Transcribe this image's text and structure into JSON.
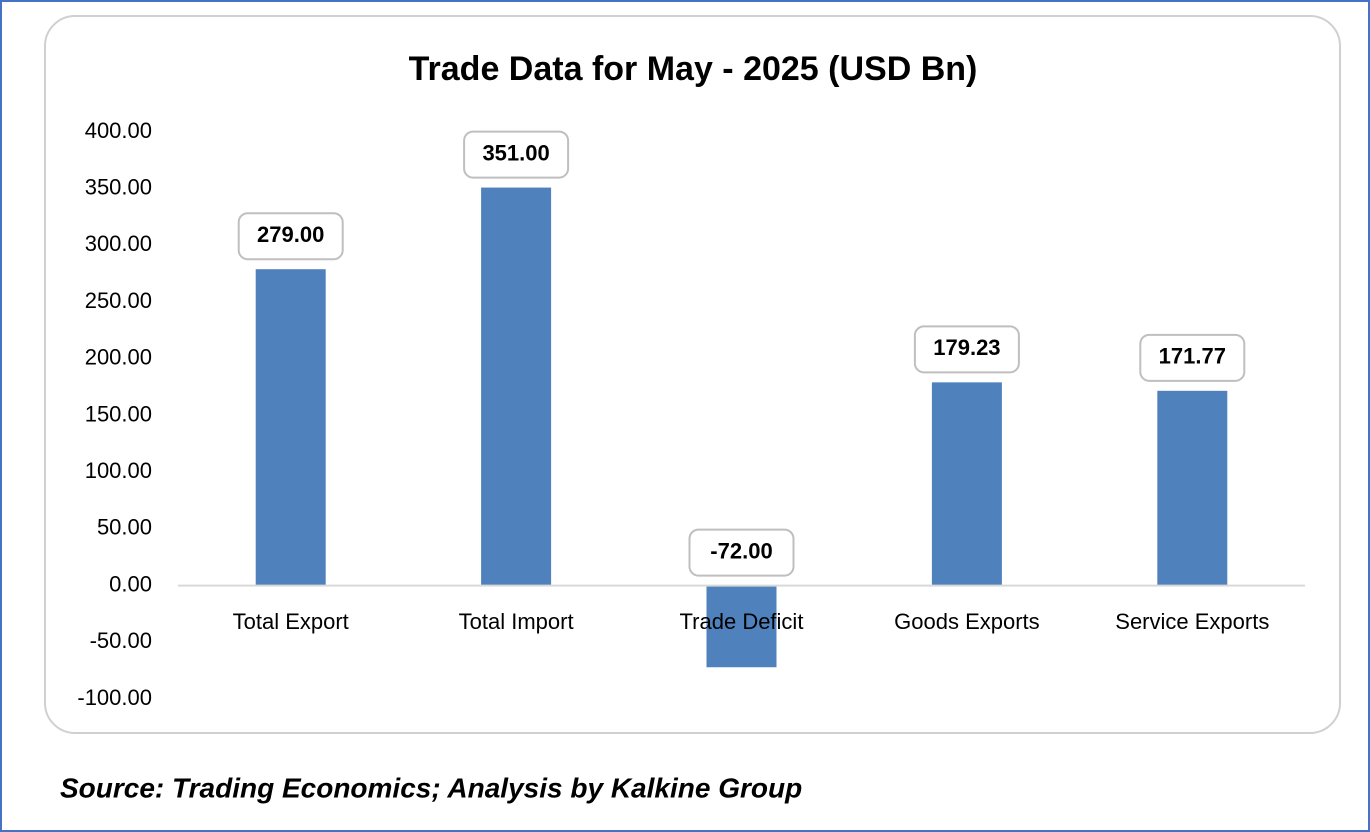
{
  "chart_data": {
    "type": "bar",
    "title": "Trade Data for May - 2025 (USD Bn)",
    "categories": [
      "Total Export",
      "Total Import",
      "Trade Deficit",
      "Goods Exports",
      "Service Exports"
    ],
    "values": [
      279,
      351,
      -72,
      179.23,
      171.77
    ],
    "value_labels": [
      "279.00",
      "351.00",
      "-72.00",
      "179.23",
      "171.77"
    ],
    "color": "#4f81bd",
    "ylim": [
      -100,
      400
    ],
    "yticks": [
      {
        "value": -100,
        "label": "-100.00"
      },
      {
        "value": -50,
        "label": "-50.00"
      },
      {
        "value": 0,
        "label": "0.00"
      },
      {
        "value": 50,
        "label": "50.00"
      },
      {
        "value": 100,
        "label": "100.00"
      },
      {
        "value": 150,
        "label": "150.00"
      },
      {
        "value": 200,
        "label": "200.00"
      },
      {
        "value": 250,
        "label": "250.00"
      },
      {
        "value": 300,
        "label": "300.00"
      },
      {
        "value": 350,
        "label": "350.00"
      },
      {
        "value": 400,
        "label": "400.00"
      }
    ],
    "grid": false,
    "source": "Source: Trading Economics; Analysis by Kalkine Group"
  }
}
